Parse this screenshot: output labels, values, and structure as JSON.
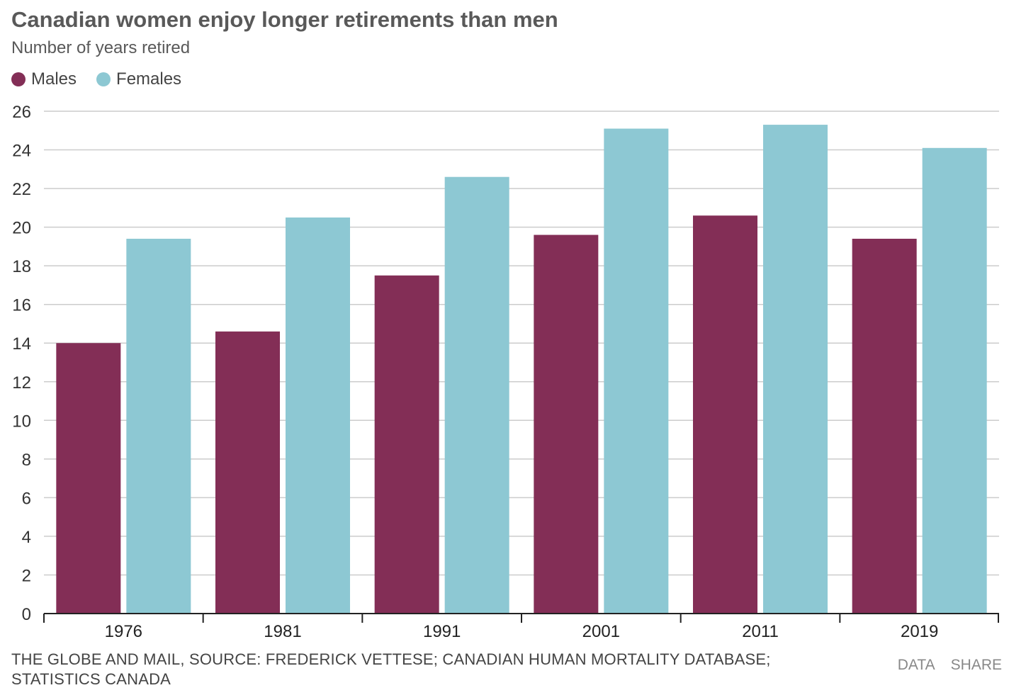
{
  "title": "Canadian women enjoy longer retirements than men",
  "subtitle": "Number of years retired",
  "legend": [
    {
      "name": "Males",
      "color": "#832e56"
    },
    {
      "name": "Females",
      "color": "#8dc8d3"
    }
  ],
  "source": "THE GLOBE AND MAIL, SOURCE: FREDERICK VETTESE; CANADIAN HUMAN MORTALITY DATABASE; STATISTICS CANADA",
  "actions": {
    "data_label": "DATA",
    "share_label": "SHARE"
  },
  "chart_data": {
    "type": "bar",
    "categories": [
      "1976",
      "1981",
      "1991",
      "2001",
      "2011",
      "2019"
    ],
    "series": [
      {
        "name": "Males",
        "color": "#832e56",
        "values": [
          14.0,
          14.6,
          17.5,
          19.6,
          20.6,
          19.4
        ]
      },
      {
        "name": "Females",
        "color": "#8dc8d3",
        "values": [
          19.4,
          20.5,
          22.6,
          25.1,
          25.3,
          24.1
        ]
      }
    ],
    "ylim": [
      0,
      26
    ],
    "yticks": [
      0,
      2,
      4,
      6,
      8,
      10,
      12,
      14,
      16,
      18,
      20,
      22,
      24,
      26
    ],
    "grid": true,
    "legend_position": "top-left"
  }
}
